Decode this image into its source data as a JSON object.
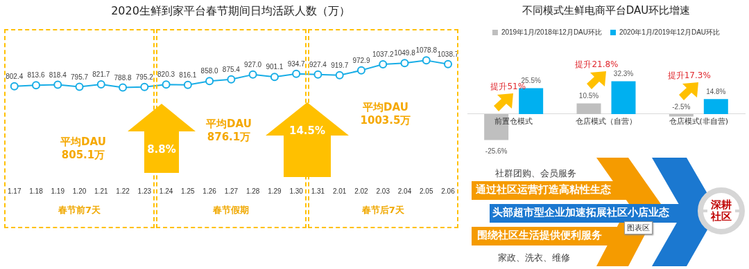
{
  "chart_data": [
    {
      "type": "line",
      "title": "2020生鲜到家平台春节期间日均活跃人数（万）",
      "categories": [
        "1.17",
        "1.18",
        "1.19",
        "1.20",
        "1.21",
        "1.22",
        "1.23",
        "1.24",
        "1.25",
        "1.26",
        "1.27",
        "1.28",
        "1.29",
        "1.30",
        "1.31",
        "2.01",
        "2.02",
        "2.03",
        "2.04",
        "2.05",
        "2.06"
      ],
      "values": [
        802.4,
        813.6,
        818.4,
        795.7,
        821.7,
        788.8,
        795.2,
        820.3,
        816.1,
        858.0,
        875.4,
        927.0,
        901.1,
        934.7,
        927.4,
        919.7,
        972.9,
        1037.2,
        1049.8,
        1078.8,
        1038.7
      ],
      "value_labels": [
        "802.4",
        "813.6",
        "818.4",
        "795.7",
        "821.7",
        "788.8",
        "795.2",
        "820.3",
        "816.1",
        "858.0",
        "875.4",
        "927.0",
        "901.1",
        "934.7",
        "927.4",
        "919.7",
        "972.9",
        "1037.2",
        "1049.8",
        "1078.8",
        "1038.7"
      ],
      "color": "#18ade6",
      "marker": "circle",
      "annotations": [
        "平均DAU 805.1万",
        "平均DAU 876.1万",
        "平均DAU 1003.5万",
        "8.8%",
        "14.5%",
        "春节前7天",
        "春节假期",
        "春节后7天"
      ]
    },
    {
      "type": "bar",
      "title": "不同模式生鲜电商平台DAU环比增速",
      "categories": [
        "前置仓模式",
        "仓店模式（自营）",
        "仓店模式(非自营)"
      ],
      "series": [
        {
          "name": "2019年1月/2018年12月DAU环比",
          "color": "#bfbfbf",
          "values": [
            -25.6,
            10.5,
            -2.5
          ],
          "value_labels": [
            "-25.6%",
            "10.5%",
            "-2.5%"
          ]
        },
        {
          "name": "2020年1月/2019年12月DAU环比",
          "color": "#00b0f0",
          "values": [
            25.5,
            32.3,
            14.8
          ],
          "value_labels": [
            "25.5%",
            "32.3%",
            "14.8%"
          ]
        }
      ],
      "legend": "top",
      "annotations": [
        "提升51%",
        "提升21.8%",
        "提升17.3%"
      ]
    },
    {
      "type": "other",
      "annotations": [
        "社群团购、会员服务",
        "通过社区运营打造高粘性生态",
        "头部超市型企业加速拓展社区小店业态",
        "围绕社区生活提供便利服务",
        "家政、洗衣、维修",
        "深耕社区",
        "图表区"
      ]
    }
  ]
}
